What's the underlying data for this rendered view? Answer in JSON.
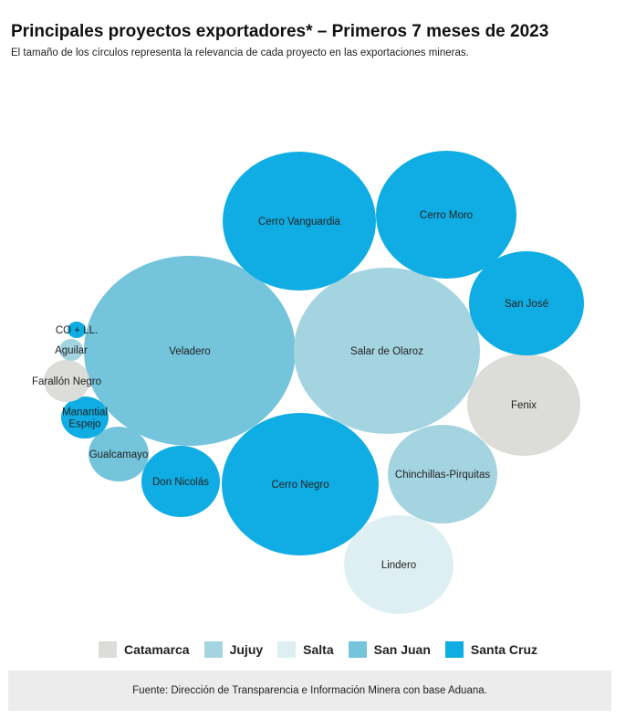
{
  "header": {
    "title": "Principales proyectos exportadores* – Primeros 7 meses de 2023",
    "subtitle": "El tamaño de los círculos representa la relevancia de cada proyecto en las exportaciones mineras."
  },
  "colors": {
    "Catamarca": "#dcdcd9",
    "Jujuy": "#a5d4e1",
    "Salta": "#ddeff2",
    "San Juan": "#74c4dc",
    "Santa Cruz": "#0fade3"
  },
  "chart_data": {
    "type": "bubble",
    "title": "Principales proyectos exportadores* – Primeros 7 meses de 2023",
    "legend": [
      "Catamarca",
      "Jujuy",
      "Salta",
      "San Juan",
      "Santa Cruz"
    ],
    "legend_placement": "bottom",
    "bubbles": [
      {
        "name": "Veladero",
        "province": "San Juan",
        "relative_size": 1.0
      },
      {
        "name": "Salar de Olaroz",
        "province": "Jujuy",
        "relative_size": 0.97
      },
      {
        "name": "Cerro Negro",
        "province": "Santa Cruz",
        "relative_size": 0.82
      },
      {
        "name": "Cerro Vanguardia",
        "province": "Santa Cruz",
        "relative_size": 0.77
      },
      {
        "name": "Cerro Moro",
        "province": "Santa Cruz",
        "relative_size": 0.68
      },
      {
        "name": "Fenix",
        "province": "Catamarca",
        "relative_size": 0.34
      },
      {
        "name": "San José",
        "province": "Santa Cruz",
        "relative_size": 0.35
      },
      {
        "name": "Chinchillas-Pirquitas",
        "province": "Jujuy",
        "relative_size": 0.3
      },
      {
        "name": "Lindero",
        "province": "Salta",
        "relative_size": 0.33
      },
      {
        "name": "Don Nicolás",
        "province": "Santa Cruz",
        "relative_size": 0.14
      },
      {
        "name": "Gualcamayo",
        "province": "San Juan",
        "relative_size": 0.08
      },
      {
        "name": "Manantial Espejo",
        "province": "Santa Cruz",
        "relative_size": 0.045
      },
      {
        "name": "Farallón Negro",
        "province": "Catamarca",
        "relative_size": 0.05
      },
      {
        "name": "Aguilar",
        "province": "Jujuy",
        "relative_size": 0.015
      },
      {
        "name": "CO + LL.",
        "province": "Santa Cruz",
        "relative_size": 0.01
      }
    ]
  },
  "footer": {
    "source": "Fuente: Dirección de Transparencia e Información Minera con base Aduana."
  }
}
